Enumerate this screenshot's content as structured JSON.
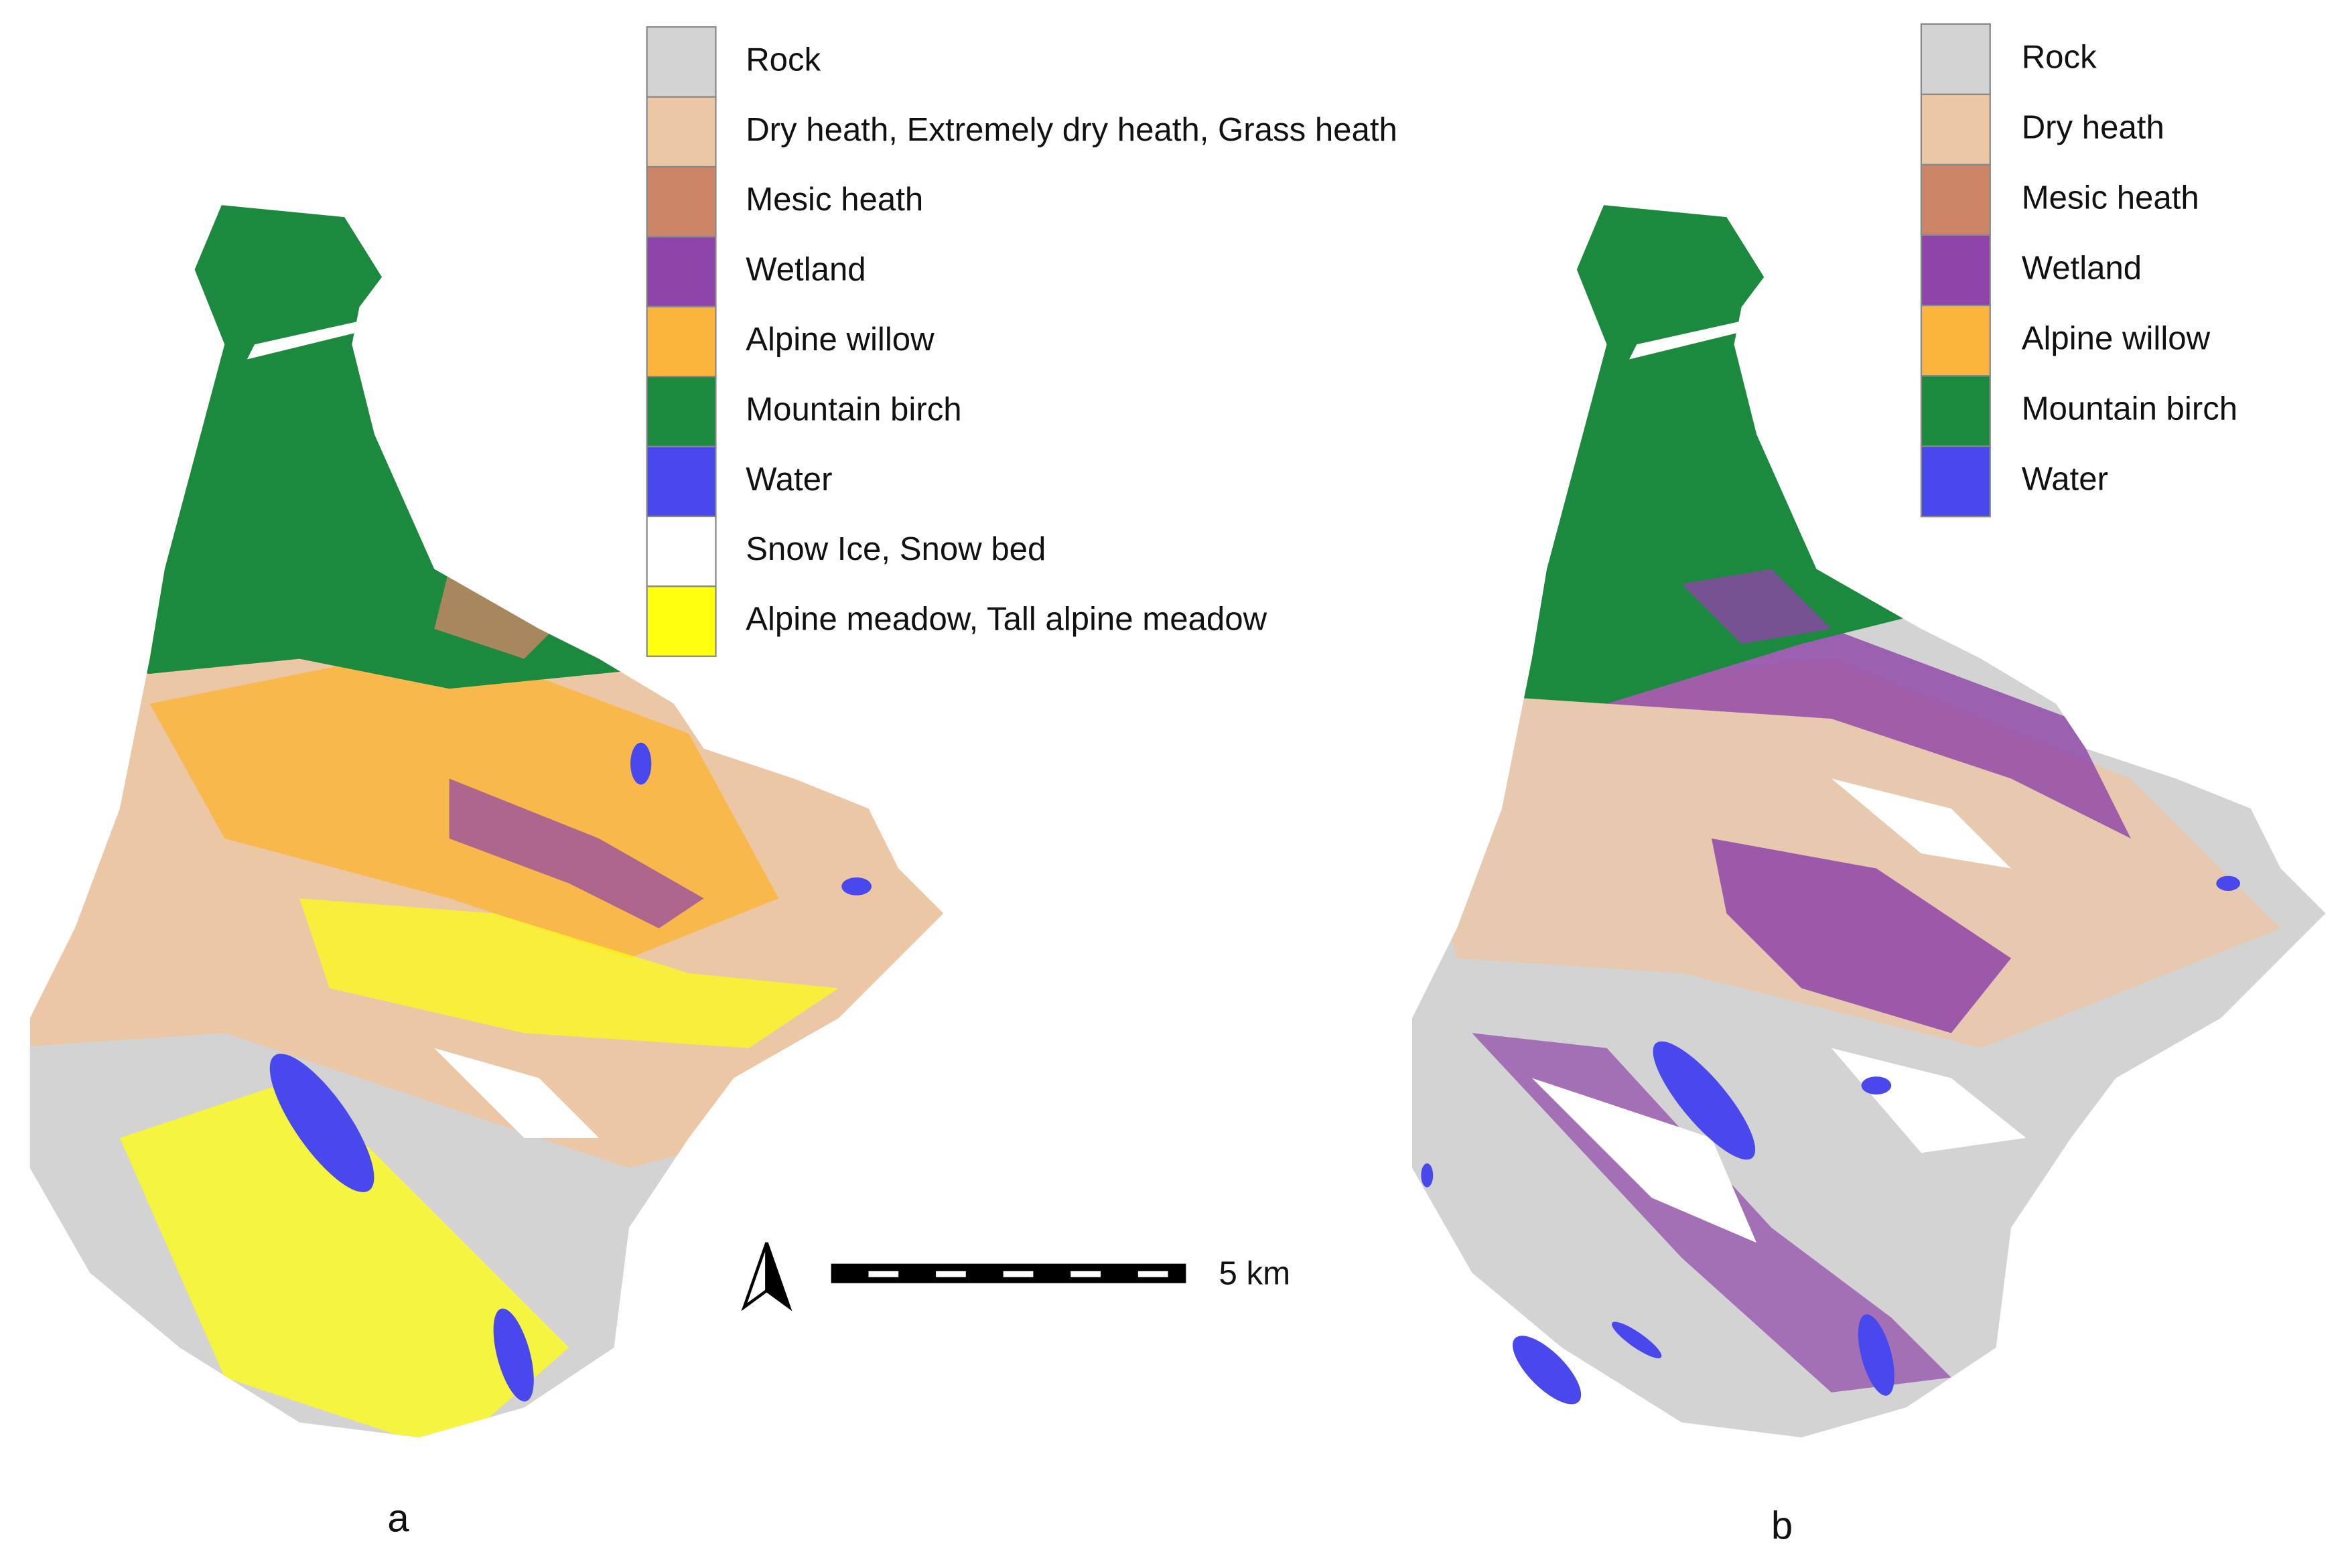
{
  "panels": [
    {
      "label": "a",
      "legend": [
        {
          "name": "Rock",
          "color": "#d3d3d3"
        },
        {
          "name": "Dry heath, Extremely dry heath, Grass heath",
          "color": "#ebc7a6"
        },
        {
          "name": "Mesic heath",
          "color": "#cc8466"
        },
        {
          "name": "Wetland",
          "color": "#8e44a8"
        },
        {
          "name": "Alpine willow",
          "color": "#fbb53c"
        },
        {
          "name": "Mountain birch",
          "color": "#1b8a3e"
        },
        {
          "name": "Water",
          "color": "#4848ec"
        },
        {
          "name": "Snow Ice, Snow bed",
          "color": "#ffffff"
        },
        {
          "name": "Alpine meadow, Tall alpine meadow",
          "color": "#ffff10"
        }
      ]
    },
    {
      "label": "b",
      "legend": [
        {
          "name": "Rock",
          "color": "#d3d3d3"
        },
        {
          "name": "Dry heath",
          "color": "#ebc7a6"
        },
        {
          "name": "Mesic heath",
          "color": "#cc8466"
        },
        {
          "name": "Wetland",
          "color": "#8e44a8"
        },
        {
          "name": "Alpine willow",
          "color": "#fbb53c"
        },
        {
          "name": "Mountain birch",
          "color": "#1b8a3e"
        },
        {
          "name": "Water",
          "color": "#4848ec"
        }
      ]
    }
  ],
  "scale_bar": {
    "label": "5 km"
  }
}
